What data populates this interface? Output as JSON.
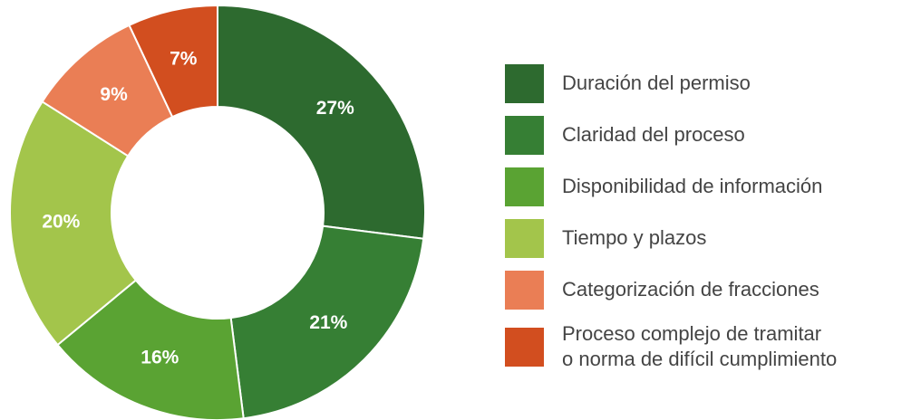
{
  "chart_data": {
    "type": "donut",
    "categories": [
      "Duración del permiso",
      "Claridad del proceso",
      "Disponibilidad de información",
      "Tiempo y plazos",
      "Categorización de fracciones",
      "Proceso complejo de tramitar\no norma de difícil cumplimiento"
    ],
    "values": [
      27,
      21,
      16,
      20,
      9,
      7
    ],
    "value_labels": [
      "27%",
      "21%",
      "16%",
      "20%",
      "9%",
      "7%"
    ],
    "colors": [
      "#2d6a2f",
      "#367f34",
      "#5aa333",
      "#a3c54b",
      "#ea7e55",
      "#d24e1f"
    ],
    "legend": "right"
  }
}
